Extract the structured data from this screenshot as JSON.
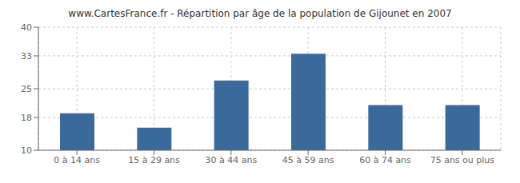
{
  "chart_data": {
    "type": "bar",
    "title": "www.CartesFrance.fr - Répartition par âge de la population de Gijounet en 2007",
    "categories": [
      "0 à 14 ans",
      "15 à 29 ans",
      "30 à 44 ans",
      "45 à 59 ans",
      "60 à 74 ans",
      "75 ans ou plus"
    ],
    "values": [
      19.0,
      15.5,
      27.0,
      33.5,
      21.0,
      21.0
    ],
    "color": "#3a6a9b",
    "ylim": [
      10,
      40
    ],
    "yticks": [
      10,
      18,
      25,
      33,
      40
    ],
    "grid": true
  }
}
